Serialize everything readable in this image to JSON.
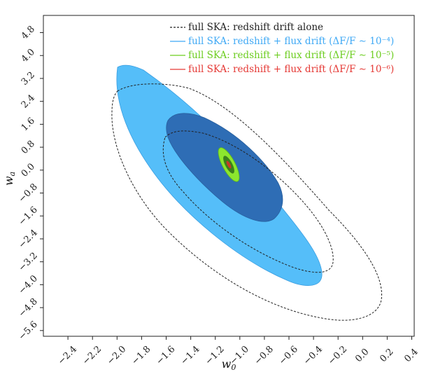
{
  "chart_data": {
    "type": "contour",
    "xlabel": "w₀",
    "ylabel": "wₐ",
    "xlim": [
      -2.6,
      0.42
    ],
    "ylim": [
      -5.8,
      5.4
    ],
    "xticks": [
      -2.4,
      -2.2,
      -2.0,
      -1.8,
      -1.6,
      -1.4,
      -1.2,
      -1.0,
      -0.8,
      -0.6,
      -0.4,
      -0.2,
      0.0,
      0.2,
      0.4
    ],
    "xtick_labels": [
      "−2.4",
      "−2.2",
      "−2.0",
      "−1.8",
      "−1.6",
      "−1.4",
      "−1.2",
      "−1.0",
      "−0.8",
      "−0.6",
      "−0.4",
      "−0.2",
      "0.0",
      "0.2",
      "0.4"
    ],
    "yticks": [
      4.8,
      4.0,
      3.2,
      2.4,
      1.6,
      0.8,
      0.0,
      -0.8,
      -1.6,
      -2.4,
      -3.2,
      -4.0,
      -4.8,
      -5.6
    ],
    "ytick_labels": [
      "4.8",
      "4.0",
      "3.2",
      "2.4",
      "1.6",
      "0.8",
      "0.0",
      "−0.8",
      "−1.6",
      "−2.4",
      "−3.2",
      "−4.0",
      "−4.8",
      "−5.6"
    ],
    "grid": false,
    "legend_position": "top-right",
    "center": [
      -1.0,
      0.0
    ],
    "series": [
      {
        "name": "full SKA: redshift drift alone",
        "color": "#333333",
        "style": "dashed",
        "contours": [
          {
            "level": "2-sigma",
            "center": [
              -1.08,
              -0.8
            ],
            "extent_w0": [
              -2.42,
              0.2
            ],
            "extent_wa": [
              -5.55,
              2.9
            ]
          },
          {
            "level": "1-sigma",
            "center": [
              -0.82,
              -0.65
            ],
            "extent_w0": [
              -1.48,
              -0.22
            ],
            "extent_wa": [
              -3.8,
              1.0
            ]
          }
        ]
      },
      {
        "name": "full SKA: redshift + flux drift (ΔF/F ∼ 10⁻⁴)",
        "color": "#3fa9f5",
        "style": "filled",
        "contours": [
          {
            "level": "2-sigma",
            "center": [
              -1.15,
              -0.35
            ],
            "extent_w0": [
              -1.95,
              -0.35
            ],
            "extent_wa": [
              -4.05,
              3.5
            ]
          },
          {
            "level": "1-sigma",
            "center": [
              -1.1,
              -0.1
            ],
            "extent_w0": [
              -1.62,
              -0.52
            ],
            "extent_wa": [
              -2.45,
              1.8
            ]
          }
        ]
      },
      {
        "name": "full SKA: redshift + flux drift (ΔF/F ∼ 10⁻⁵)",
        "color": "#7ddb2c",
        "style": "filled",
        "contours": [
          {
            "level": "2-sigma",
            "center": [
              -1.0,
              0.0
            ],
            "extent_w0": [
              -1.08,
              -0.92
            ],
            "extent_wa": [
              -0.3,
              0.3
            ]
          }
        ]
      },
      {
        "name": "full SKA: redshift + flux drift (ΔF/F ∼ 10⁻⁶)",
        "color": "#e53935",
        "style": "filled",
        "contours": [
          {
            "level": "2-sigma",
            "center": [
              -1.0,
              0.0
            ],
            "extent_w0": [
              -1.03,
              -0.97
            ],
            "extent_wa": [
              -0.09,
              0.09
            ]
          }
        ]
      }
    ],
    "legend": [
      {
        "text": "full SKA: redshift drift alone",
        "color": "#222222",
        "style": "dashed"
      },
      {
        "text": "full SKA: redshift + flux drift (ΔF/F ∼ 10⁻⁴)",
        "color": "#3fa9f5",
        "style": "solid"
      },
      {
        "text": "full SKA: redshift + flux drift (ΔF/F ∼ 10⁻⁵)",
        "color": "#6ccd1f",
        "style": "solid"
      },
      {
        "text": "full SKA: redshift + flux drift (ΔF/F ∼ 10⁻⁶)",
        "color": "#e53935",
        "style": "solid"
      }
    ]
  }
}
